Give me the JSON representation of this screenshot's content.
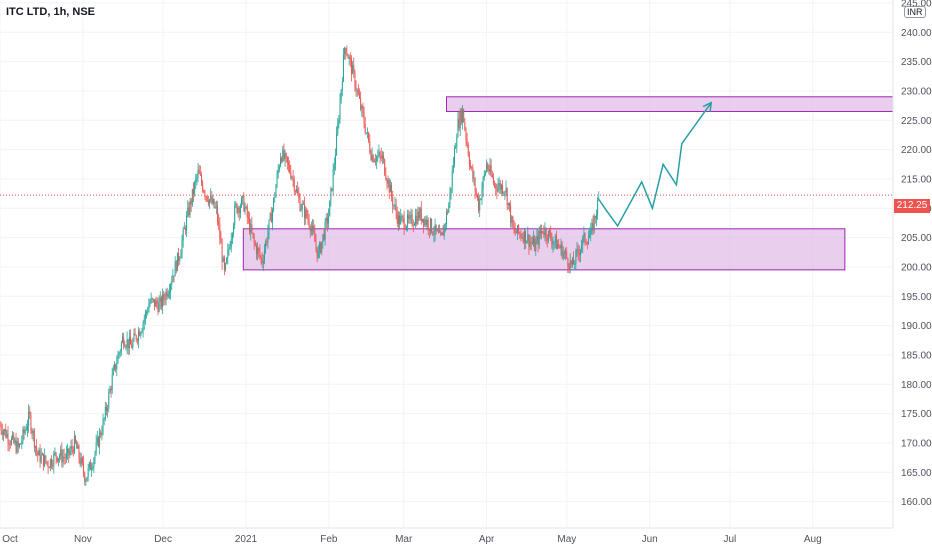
{
  "header": {
    "symbol_line": "ITC LTD, 1h, NSE",
    "currency": "INR"
  },
  "last_price_label": "212.25",
  "colors": {
    "up": "#26a69a",
    "down": "#ef5350",
    "zone_fill": "#e1bee7",
    "zone_stroke": "#9c27b0",
    "projection": "#26a0a6",
    "grid": "#f0f3fa"
  },
  "chart_data": {
    "type": "candlestick",
    "title": "ITC LTD, 1h, NSE",
    "xlabel": "",
    "ylabel": "",
    "ylim": [
      155.5,
      245.5
    ],
    "y_ticks": [
      "160.00",
      "165.00",
      "170.00",
      "175.00",
      "180.00",
      "185.00",
      "190.00",
      "195.00",
      "200.00",
      "205.00",
      "210.00",
      "215.00",
      "220.00",
      "225.00",
      "230.00",
      "235.00",
      "240.00",
      "245.00"
    ],
    "x_ticks": [
      "Oct",
      "Nov",
      "Dec",
      "2021",
      "Feb",
      "Mar",
      "Apr",
      "May",
      "Jun",
      "Jul",
      "Aug"
    ],
    "x_range": [
      "2020-10-01",
      "2021-08-31"
    ],
    "series": [
      {
        "type": "close_path",
        "points": [
          [
            "2020-10-01",
            173.0
          ],
          [
            "2020-10-05",
            170.5
          ],
          [
            "2020-10-08",
            169.0
          ],
          [
            "2020-10-12",
            174.5
          ],
          [
            "2020-10-15",
            168.0
          ],
          [
            "2020-10-19",
            166.5
          ],
          [
            "2020-10-22",
            168.0
          ],
          [
            "2020-10-26",
            167.5
          ],
          [
            "2020-10-29",
            170.0
          ],
          [
            "2020-11-02",
            164.0
          ],
          [
            "2020-11-05",
            167.5
          ],
          [
            "2020-11-09",
            174.0
          ],
          [
            "2020-11-12",
            181.0
          ],
          [
            "2020-11-16",
            188.0
          ],
          [
            "2020-11-19",
            186.5
          ],
          [
            "2020-11-23",
            190.0
          ],
          [
            "2020-11-26",
            194.0
          ],
          [
            "2020-11-30",
            193.5
          ],
          [
            "2020-12-03",
            196.5
          ],
          [
            "2020-12-07",
            202.0
          ],
          [
            "2020-12-10",
            208.5
          ],
          [
            "2020-12-14",
            216.0
          ],
          [
            "2020-12-17",
            212.5
          ],
          [
            "2020-12-21",
            209.5
          ],
          [
            "2020-12-24",
            198.5
          ],
          [
            "2020-12-28",
            210.0
          ],
          [
            "2020-12-31",
            211.0
          ],
          [
            "2021-01-04",
            204.0
          ],
          [
            "2021-01-07",
            201.0
          ],
          [
            "2021-01-11",
            210.0
          ],
          [
            "2021-01-14",
            219.5
          ],
          [
            "2021-01-18",
            216.0
          ],
          [
            "2021-01-21",
            211.0
          ],
          [
            "2021-01-25",
            207.5
          ],
          [
            "2021-01-28",
            202.0
          ],
          [
            "2021-02-01",
            209.0
          ],
          [
            "2021-02-04",
            222.0
          ],
          [
            "2021-02-07",
            238.0
          ],
          [
            "2021-02-10",
            233.0
          ],
          [
            "2021-02-13",
            227.0
          ],
          [
            "2021-02-17",
            219.0
          ],
          [
            "2021-02-21",
            218.5
          ],
          [
            "2021-02-25",
            211.0
          ],
          [
            "2021-02-27",
            208.0
          ],
          [
            "2021-03-03",
            207.5
          ],
          [
            "2021-03-07",
            209.0
          ],
          [
            "2021-03-11",
            207.0
          ],
          [
            "2021-03-15",
            204.5
          ],
          [
            "2021-03-18",
            211.0
          ],
          [
            "2021-03-21",
            224.0
          ],
          [
            "2021-03-23",
            226.5
          ],
          [
            "2021-03-26",
            217.0
          ],
          [
            "2021-03-29",
            210.5
          ],
          [
            "2021-04-01",
            217.5
          ],
          [
            "2021-04-04",
            214.0
          ],
          [
            "2021-04-08",
            213.5
          ],
          [
            "2021-04-11",
            206.0
          ],
          [
            "2021-04-15",
            205.5
          ],
          [
            "2021-04-19",
            203.5
          ],
          [
            "2021-04-22",
            206.5
          ],
          [
            "2021-04-26",
            204.5
          ],
          [
            "2021-04-29",
            203.0
          ],
          [
            "2021-05-03",
            200.0
          ],
          [
            "2021-05-07",
            204.5
          ],
          [
            "2021-05-10",
            205.5
          ],
          [
            "2021-05-13",
            211.5
          ]
        ]
      },
      {
        "type": "projection",
        "points": [
          [
            "2021-05-16",
            209.5
          ],
          [
            "2021-05-20",
            207.0
          ],
          [
            "2021-05-29",
            214.5
          ],
          [
            "2021-06-02",
            210.0
          ],
          [
            "2021-06-06",
            217.5
          ],
          [
            "2021-06-11",
            214.0
          ],
          [
            "2021-06-13",
            221.0
          ],
          [
            "2021-06-24",
            228.0
          ]
        ]
      }
    ],
    "annotations": [
      {
        "type": "zone",
        "x_start": "2020-12-31",
        "x_end": "2021-08-13",
        "y_low": 199.5,
        "y_high": 206.5
      },
      {
        "type": "zone",
        "x_start": "2021-03-17",
        "x_end": "2021-08-31",
        "y_low": 226.5,
        "y_high": 229.0
      },
      {
        "type": "price_line",
        "y": 212.25
      }
    ],
    "grid": true,
    "legend": "none"
  }
}
